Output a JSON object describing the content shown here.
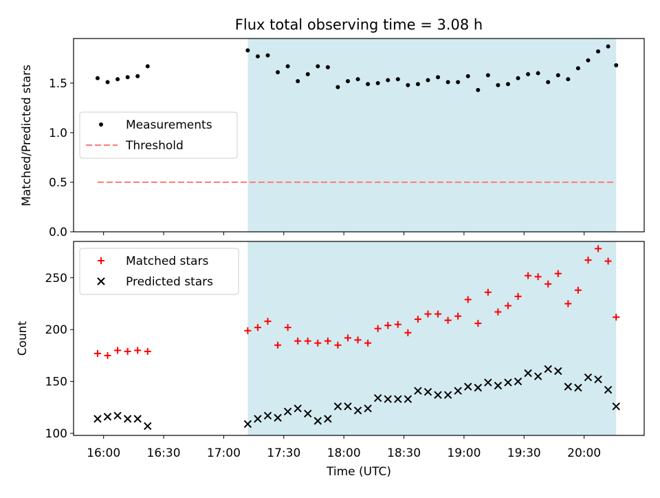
{
  "figure": {
    "title": "Flux total observing time = 3.08 h",
    "xlabel": "Time (UTC)",
    "xticks": [
      {
        "t": 960,
        "label": "16:00"
      },
      {
        "t": 990,
        "label": "16:30"
      },
      {
        "t": 1020,
        "label": "17:00"
      },
      {
        "t": 1050,
        "label": "17:30"
      },
      {
        "t": 1080,
        "label": "18:00"
      },
      {
        "t": 1110,
        "label": "18:30"
      },
      {
        "t": 1140,
        "label": "19:00"
      },
      {
        "t": 1170,
        "label": "19:30"
      },
      {
        "t": 1200,
        "label": "20:00"
      }
    ],
    "xlim": [
      "15:45",
      "20:30"
    ],
    "shade_color": "#d3eaf0",
    "shade_span": [
      "17:12",
      "20:16"
    ]
  },
  "chart_data": [
    {
      "type": "scatter",
      "ylabel": "Matched/Predicted stars",
      "ylim": [
        0,
        1.95
      ],
      "yticks": [
        0.0,
        0.5,
        1.0,
        1.5
      ],
      "ytick_labels": [
        "0.0",
        "0.5",
        "1.0",
        "1.5"
      ],
      "legend": {
        "placement": "center-left",
        "entries": [
          {
            "label": "Measurements",
            "marker": "dot",
            "color": "#000000"
          },
          {
            "label": "Threshold",
            "marker": "dashed-line",
            "color": "#ff7f7f"
          }
        ]
      },
      "series": [
        {
          "name": "Measurements",
          "marker": "dot",
          "color": "#000000",
          "x": [
            "15:57",
            "16:02",
            "16:07",
            "16:12",
            "16:17",
            "16:22",
            "17:12",
            "17:17",
            "17:22",
            "17:27",
            "17:32",
            "17:37",
            "17:42",
            "17:47",
            "17:52",
            "17:57",
            "18:02",
            "18:07",
            "18:12",
            "18:17",
            "18:22",
            "18:27",
            "18:32",
            "18:37",
            "18:42",
            "18:47",
            "18:52",
            "18:57",
            "19:02",
            "19:07",
            "19:12",
            "19:17",
            "19:22",
            "19:27",
            "19:32",
            "19:37",
            "19:42",
            "19:47",
            "19:52",
            "19:57",
            "20:02",
            "20:07",
            "20:12",
            "20:16"
          ],
          "y": [
            1.55,
            1.51,
            1.54,
            1.56,
            1.57,
            1.67,
            1.83,
            1.77,
            1.78,
            1.61,
            1.67,
            1.52,
            1.59,
            1.67,
            1.66,
            1.46,
            1.52,
            1.54,
            1.49,
            1.5,
            1.53,
            1.54,
            1.48,
            1.49,
            1.53,
            1.56,
            1.51,
            1.51,
            1.57,
            1.43,
            1.58,
            1.48,
            1.49,
            1.55,
            1.59,
            1.6,
            1.51,
            1.58,
            1.54,
            1.65,
            1.73,
            1.82,
            1.87,
            1.68
          ]
        },
        {
          "name": "Threshold",
          "marker": "dashed-line",
          "color": "#ff7f7f",
          "x": [
            "15:57",
            "20:16"
          ],
          "y": [
            0.5,
            0.5
          ]
        }
      ]
    },
    {
      "type": "scatter",
      "ylabel": "Count",
      "ylim": [
        98,
        285
      ],
      "yticks": [
        100,
        150,
        200,
        250
      ],
      "ytick_labels": [
        "100",
        "150",
        "200",
        "250"
      ],
      "legend": {
        "placement": "top-left",
        "entries": [
          {
            "label": "Matched stars",
            "marker": "plus",
            "color": "#ff0000"
          },
          {
            "label": "Predicted stars",
            "marker": "x",
            "color": "#000000"
          }
        ]
      },
      "series": [
        {
          "name": "Matched stars",
          "marker": "plus",
          "color": "#ff0000",
          "x": [
            "15:57",
            "16:02",
            "16:07",
            "16:12",
            "16:17",
            "16:22",
            "17:12",
            "17:17",
            "17:22",
            "17:27",
            "17:32",
            "17:37",
            "17:42",
            "17:47",
            "17:52",
            "17:57",
            "18:02",
            "18:07",
            "18:12",
            "18:17",
            "18:22",
            "18:27",
            "18:32",
            "18:37",
            "18:42",
            "18:47",
            "18:52",
            "18:57",
            "19:02",
            "19:07",
            "19:12",
            "19:17",
            "19:22",
            "19:27",
            "19:32",
            "19:37",
            "19:42",
            "19:47",
            "19:52",
            "19:57",
            "20:02",
            "20:07",
            "20:12",
            "20:16"
          ],
          "y": [
            177,
            175,
            180,
            179,
            180,
            179,
            199,
            202,
            208,
            185,
            202,
            189,
            189,
            187,
            189,
            185,
            192,
            190,
            187,
            201,
            204,
            205,
            197,
            210,
            215,
            215,
            209,
            213,
            229,
            206,
            236,
            217,
            223,
            232,
            252,
            251,
            244,
            254,
            225,
            238,
            267,
            278,
            266,
            212
          ]
        },
        {
          "name": "Predicted stars",
          "marker": "x",
          "color": "#000000",
          "x": [
            "15:57",
            "16:02",
            "16:07",
            "16:12",
            "16:17",
            "16:22",
            "17:12",
            "17:17",
            "17:22",
            "17:27",
            "17:32",
            "17:37",
            "17:42",
            "17:47",
            "17:52",
            "17:57",
            "18:02",
            "18:07",
            "18:12",
            "18:17",
            "18:22",
            "18:27",
            "18:32",
            "18:37",
            "18:42",
            "18:47",
            "18:52",
            "18:57",
            "19:02",
            "19:07",
            "19:12",
            "19:17",
            "19:22",
            "19:27",
            "19:32",
            "19:37",
            "19:42",
            "19:47",
            "19:52",
            "19:57",
            "20:02",
            "20:07",
            "20:12",
            "20:16"
          ],
          "y": [
            114,
            116,
            117,
            114,
            114,
            107,
            109,
            114,
            117,
            115,
            121,
            124,
            119,
            112,
            114,
            126,
            126,
            122,
            124,
            134,
            133,
            133,
            133,
            141,
            140,
            137,
            137,
            141,
            145,
            144,
            149,
            146,
            149,
            150,
            158,
            155,
            162,
            160,
            145,
            144,
            154,
            152,
            142,
            126
          ]
        }
      ]
    }
  ]
}
